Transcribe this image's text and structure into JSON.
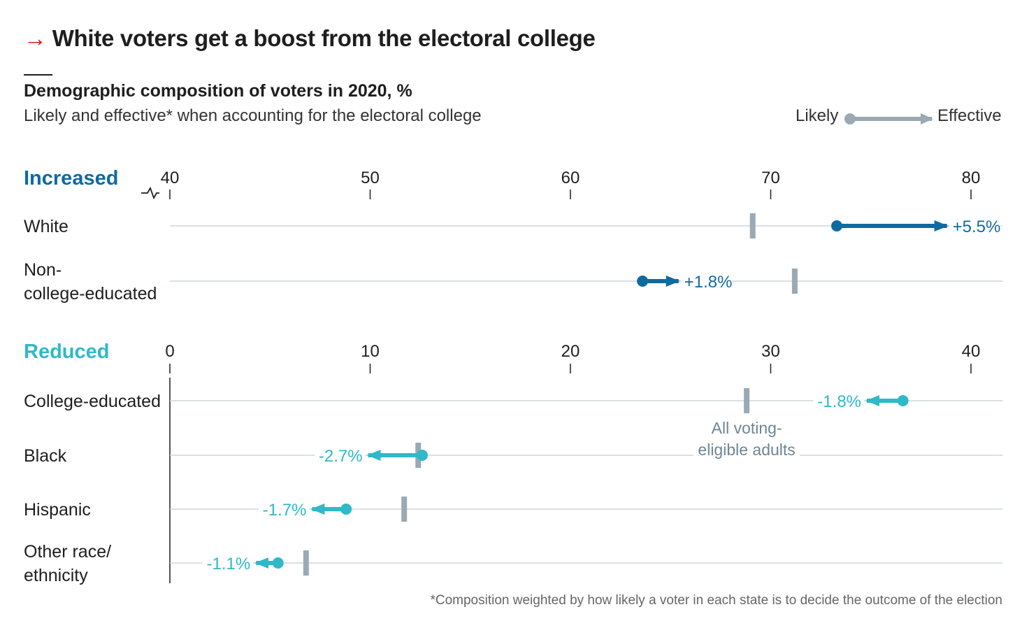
{
  "headline": "White voters get a boost from the electoral college",
  "subtitle": "Demographic composition of voters in 2020, %",
  "subsubtitle": "Likely and effective* when accounting for the electoral college",
  "legend": {
    "likely": "Likely",
    "effective": "Effective"
  },
  "footnote": "*Composition weighted by how likely a voter in each state is to decide the outcome of the election",
  "colors": {
    "increased": "#0f6aa1",
    "reduced": "#2fb9c9",
    "marker": "#9aa9b4",
    "gridline": "#cfd5d9",
    "text": "#1e1e1e",
    "headline_arrow": "#e3120b"
  },
  "chart_data": [
    {
      "type": "dumbbell",
      "panel": "Increased",
      "x_ticks": [
        40,
        50,
        60,
        70,
        80
      ],
      "xlim": [
        40,
        81.5
      ],
      "axis_break": true,
      "series": [
        {
          "category": "White",
          "likely": 73.3,
          "effective": 78.8,
          "all_voting_eligible_adults": 69.1,
          "change_label": "+5.5%"
        },
        {
          "category": "Non-college-educated",
          "likely": 63.6,
          "effective": 65.4,
          "all_voting_eligible_adults": 71.2,
          "change_label": "+1.8%"
        }
      ]
    },
    {
      "type": "dumbbell",
      "panel": "Reduced",
      "x_ticks": [
        0,
        10,
        20,
        30,
        40
      ],
      "xlim": [
        0,
        41.5
      ],
      "annotation": "All voting-eligible adults",
      "series": [
        {
          "category": "College-educated",
          "likely": 36.6,
          "effective": 34.8,
          "all_voting_eligible_adults": 28.8,
          "change_label": "-1.8%"
        },
        {
          "category": "Black",
          "likely": 12.6,
          "effective": 9.9,
          "all_voting_eligible_adults": 12.4,
          "change_label": "-2.7%"
        },
        {
          "category": "Hispanic",
          "likely": 8.8,
          "effective": 7.1,
          "all_voting_eligible_adults": 11.7,
          "change_label": "-1.7%"
        },
        {
          "category": "Other race/ethnicity",
          "likely": 5.4,
          "effective": 4.3,
          "all_voting_eligible_adults": 6.8,
          "change_label": "-1.1%"
        }
      ]
    }
  ]
}
